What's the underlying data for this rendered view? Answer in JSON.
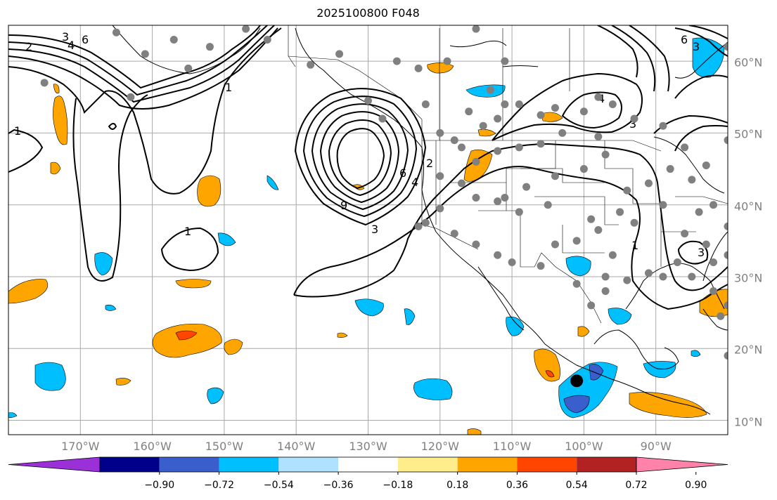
{
  "title": "2025100800 F048",
  "map": {
    "projection": "PlateCarree",
    "lon_range": [
      -180,
      -80
    ],
    "lat_range": [
      8,
      65
    ],
    "gridlines": true,
    "lon_ticks": [
      "170°W",
      "160°W",
      "150°W",
      "140°W",
      "130°W",
      "120°W",
      "110°W",
      "100°W",
      "90°W"
    ],
    "lat_ticks": [
      "60°N",
      "50°N",
      "40°N",
      "30°N",
      "20°N",
      "10°N"
    ],
    "contour_labels": [
      "2",
      "3",
      "4",
      "6",
      "1",
      "1",
      "1",
      "1",
      "9",
      "6",
      "4",
      "2",
      "3",
      "4",
      "3",
      "6",
      "3",
      "3"
    ],
    "colors": {
      "gridline": "#a9a9a9",
      "coast": "#000000",
      "contour": "#000000",
      "station_dot": "#808080",
      "marker": "#000000"
    },
    "marker": {
      "lon": -101,
      "lat": 15.5
    }
  },
  "colorbar": {
    "tick_labels": [
      "−0.90",
      "−0.72",
      "−0.54",
      "−0.36",
      "−0.18",
      "0.18",
      "0.36",
      "0.54",
      "0.72",
      "0.90"
    ],
    "bins": [
      {
        "color": "#9b30d9"
      },
      {
        "color": "#00008b"
      },
      {
        "color": "#3a5fcd"
      },
      {
        "color": "#00bfff"
      },
      {
        "color": "#b0e2ff"
      },
      {
        "color": "#ffffff"
      },
      {
        "color": "#ffec8b"
      },
      {
        "color": "#ffa500"
      },
      {
        "color": "#ff4500"
      },
      {
        "color": "#b22222"
      },
      {
        "color": "#ff82ab"
      }
    ]
  }
}
